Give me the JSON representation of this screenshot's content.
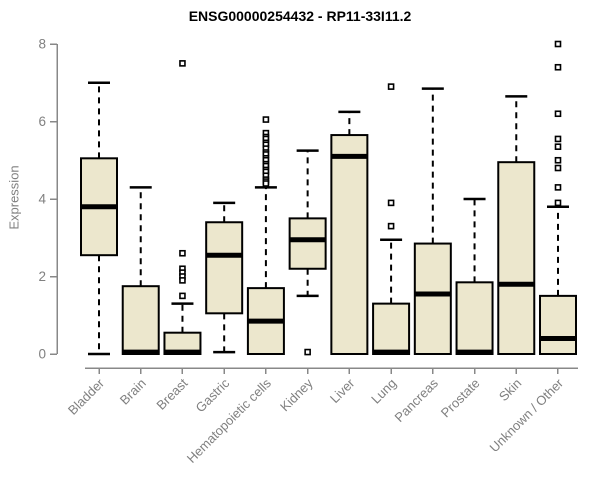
{
  "chart_data": {
    "type": "boxplot",
    "title": "ENSG00000254432 - RP11-33I11.2",
    "xlabel": "",
    "ylabel": "Expression",
    "ylim": [
      0,
      8
    ],
    "yticks": [
      0,
      2,
      4,
      6,
      8
    ],
    "grid": false,
    "legend": "none",
    "box_fill_color": "#ece7cd",
    "box_border_color": "#000000",
    "axis_color": "#888888",
    "tick_label_color": "#808080",
    "categories": [
      "Bladder",
      "Brain",
      "Breast",
      "Gastric",
      "Hematopoietic cells",
      "Kidney",
      "Liver",
      "Lung",
      "Pancreas",
      "Prostate",
      "Skin",
      "Unknown / Other"
    ],
    "boxes": [
      {
        "low": 0,
        "q1": 2.55,
        "median": 3.8,
        "q3": 5.05,
        "high": 7.0,
        "outliers": []
      },
      {
        "low": 0,
        "q1": 0,
        "median": 0.05,
        "q3": 1.75,
        "high": 4.3,
        "outliers": []
      },
      {
        "low": 0,
        "q1": 0,
        "median": 0.05,
        "q3": 0.55,
        "high": 1.3,
        "outliers": [
          7.5,
          2.6,
          2.2,
          2.1,
          2.0,
          1.9,
          1.5
        ]
      },
      {
        "low": 0.05,
        "q1": 1.05,
        "median": 2.55,
        "q3": 3.4,
        "high": 3.9,
        "outliers": []
      },
      {
        "low": 0,
        "q1": 0,
        "median": 0.85,
        "q3": 1.7,
        "high": 4.3,
        "outliers": [
          6.05,
          5.7,
          5.6,
          5.55,
          5.45,
          5.4,
          5.3,
          5.2,
          5.15,
          5.05,
          5.0,
          4.9,
          4.85,
          4.75,
          4.7,
          4.6,
          4.5,
          4.45,
          4.4
        ]
      },
      {
        "low": 1.5,
        "q1": 2.2,
        "median": 2.95,
        "q3": 3.5,
        "high": 5.25,
        "outliers": [
          0.05
        ]
      },
      {
        "low": 0,
        "q1": 0,
        "median": 5.1,
        "q3": 5.65,
        "high": 6.25,
        "outliers": []
      },
      {
        "low": 0,
        "q1": 0,
        "median": 0.05,
        "q3": 1.3,
        "high": 2.95,
        "outliers": [
          6.9,
          3.9,
          3.3
        ]
      },
      {
        "low": 0,
        "q1": 0,
        "median": 1.55,
        "q3": 2.85,
        "high": 6.85,
        "outliers": []
      },
      {
        "low": 0,
        "q1": 0,
        "median": 0.05,
        "q3": 1.85,
        "high": 4.0,
        "outliers": []
      },
      {
        "low": 0,
        "q1": 0,
        "median": 1.8,
        "q3": 4.95,
        "high": 6.65,
        "outliers": []
      },
      {
        "low": 0,
        "q1": 0,
        "median": 0.4,
        "q3": 1.5,
        "high": 3.8,
        "outliers": [
          8.0,
          7.4,
          6.2,
          5.55,
          5.35,
          5.0,
          4.8,
          4.3,
          3.9
        ]
      }
    ]
  }
}
